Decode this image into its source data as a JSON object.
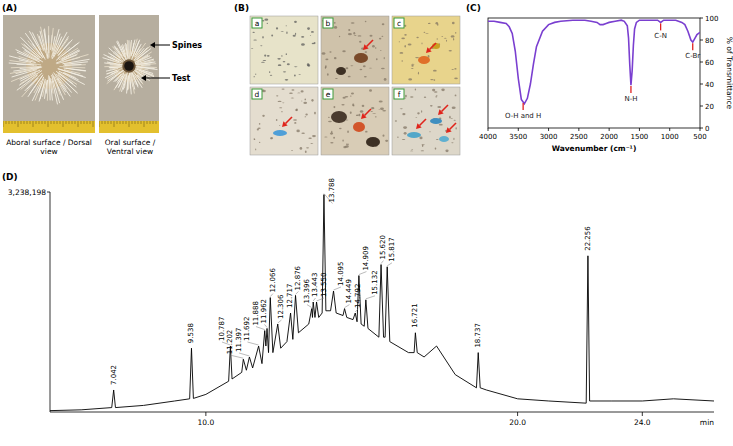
{
  "panel_labels": [
    "(A)",
    "(B)",
    "(C)",
    "(D)"
  ],
  "photos": {
    "captions": [
      "Aboral surface / Dorsal view",
      "Oral surface / Ventral view"
    ],
    "callouts": [
      "Spines",
      "Test"
    ]
  },
  "micrographs": [
    "a",
    "b",
    "c",
    "d",
    "e",
    "f"
  ],
  "chart_data": [
    {
      "type": "line",
      "x_label": "Wavenumber (cm⁻¹)",
      "y_label": "% of Transmittance",
      "color": "#7a3fd0",
      "x": [
        4000,
        3900,
        3800,
        3700,
        3650,
        3600,
        3550,
        3500,
        3450,
        3400,
        3350,
        3300,
        3250,
        3200,
        3100,
        3000,
        2900,
        2800,
        2600,
        2400,
        2300,
        2200,
        2150,
        2100,
        2050,
        2000,
        1900,
        1800,
        1750,
        1700,
        1680,
        1660,
        1640,
        1620,
        1600,
        1580,
        1550,
        1500,
        1400,
        1300,
        1200,
        1150,
        1100,
        1000,
        900,
        800,
        750,
        700,
        650,
        620,
        580,
        550,
        500
      ],
      "values": [
        97,
        97,
        96,
        95,
        92,
        86,
        70,
        45,
        26,
        22,
        27,
        40,
        58,
        74,
        88,
        94,
        96,
        97,
        98,
        98,
        97,
        96,
        94,
        94,
        95,
        96,
        97,
        98,
        97,
        93,
        82,
        58,
        39,
        52,
        75,
        90,
        96,
        98,
        98,
        98,
        98,
        96,
        98,
        98,
        98,
        96,
        94,
        88,
        80,
        78,
        82,
        85,
        87
      ],
      "xlim": [
        4000,
        500
      ],
      "xticks": [
        4000,
        3500,
        3000,
        2500,
        2000,
        1500,
        1000,
        500
      ],
      "ylim": [
        0,
        100
      ],
      "yticks": [
        0,
        20,
        40,
        60,
        80,
        100
      ],
      "annotations": [
        {
          "x": 3420,
          "label": "O-H and H"
        },
        {
          "x": 1640,
          "label": "N-H"
        },
        {
          "x": 1150,
          "label": "C-N"
        },
        {
          "x": 620,
          "label": "C-Br"
        }
      ]
    },
    {
      "type": "line",
      "x_label": "min",
      "color": "#000000",
      "x": [
        5.0,
        6.0,
        6.98,
        7.042,
        7.1,
        8.0,
        9.0,
        9.48,
        9.538,
        9.6,
        10.0,
        10.73,
        10.787,
        10.84,
        11.15,
        11.202,
        11.3,
        11.397,
        11.5,
        11.692,
        11.8,
        11.888,
        11.925,
        11.962,
        12.01,
        12.066,
        12.15,
        12.306,
        12.4,
        12.6,
        12.717,
        12.79,
        12.876,
        12.97,
        13.3,
        13.396,
        13.42,
        13.443,
        13.5,
        13.55,
        13.62,
        13.73,
        13.788,
        13.85,
        14.0,
        14.095,
        14.18,
        14.4,
        14.449,
        14.52,
        14.72,
        14.792,
        14.85,
        14.909,
        14.98,
        15.08,
        15.132,
        15.2,
        15.55,
        15.62,
        15.7,
        15.75,
        15.817,
        15.9,
        16.5,
        16.68,
        16.721,
        16.78,
        17.0,
        17.4,
        18.0,
        18.68,
        18.737,
        18.8,
        19.0,
        20.0,
        21.0,
        22.2,
        22.256,
        22.31,
        23.0,
        24.0,
        25.0,
        26.3
      ],
      "values": [
        20000,
        32000,
        65000,
        324000,
        65000,
        97000,
        162000,
        194000,
        939000,
        200000,
        259000,
        453000,
        971000,
        486000,
        583000,
        777000,
        615000,
        810000,
        648000,
        971000,
        712000,
        1198000,
        971000,
        1230000,
        874000,
        1684000,
        874000,
        1295000,
        939000,
        1036000,
        1457000,
        1069000,
        1716000,
        1166000,
        1295000,
        1522000,
        1392000,
        1619000,
        1392000,
        1619000,
        1392000,
        1457000,
        3200000,
        1490000,
        1490000,
        1781000,
        1457000,
        1420000,
        1522000,
        1392000,
        1360000,
        1457000,
        1328000,
        2008000,
        1295000,
        1262000,
        1651000,
        1230000,
        1101000,
        2170000,
        1101000,
        1101000,
        2137000,
        1036000,
        874000,
        874000,
        1166000,
        874000,
        810000,
        971000,
        550000,
        356000,
        874000,
        356000,
        324000,
        194000,
        162000,
        130000,
        2299000,
        162000,
        162000,
        162000,
        194000,
        162000
      ],
      "xlim": [
        5.0,
        26.3
      ],
      "xticks": [
        {
          "value": 10,
          "label": "10.0"
        },
        {
          "value": 20,
          "label": "20.0"
        },
        {
          "value": 24,
          "label": "24.0"
        }
      ],
      "ylim": [
        0,
        3238198
      ],
      "yticks": [
        {
          "value": 3238198,
          "label": "3,238,198"
        }
      ],
      "annotations": [
        {
          "x": 7.042,
          "label": "7.042"
        },
        {
          "x": 9.538,
          "label": "9.538"
        },
        {
          "x": 10.787,
          "label": "10.787"
        },
        {
          "x": 11.202,
          "label": "11.202"
        },
        {
          "x": 11.397,
          "label": "11.397"
        },
        {
          "x": 11.692,
          "label": "11.692"
        },
        {
          "x": 11.888,
          "label": "11.888"
        },
        {
          "x": 11.962,
          "label": "11.962"
        },
        {
          "x": 12.066,
          "label": "12.066"
        },
        {
          "x": 12.306,
          "label": "12.306"
        },
        {
          "x": 12.717,
          "label": "12.717"
        },
        {
          "x": 12.876,
          "label": "12.876"
        },
        {
          "x": 13.396,
          "label": "13.396"
        },
        {
          "x": 13.443,
          "label": "13.443"
        },
        {
          "x": 13.55,
          "label": "13.550"
        },
        {
          "x": 13.788,
          "label": "13.788"
        },
        {
          "x": 14.095,
          "label": "14.095"
        },
        {
          "x": 14.449,
          "label": "14.449"
        },
        {
          "x": 14.792,
          "label": "14.792"
        },
        {
          "x": 14.909,
          "label": "14.909"
        },
        {
          "x": 15.132,
          "label": "15.132"
        },
        {
          "x": 15.62,
          "label": "15.620"
        },
        {
          "x": 15.817,
          "label": "15.817"
        },
        {
          "x": 16.721,
          "label": "16.721"
        },
        {
          "x": 18.737,
          "label": "18.737"
        },
        {
          "x": 22.256,
          "label": "22.256"
        }
      ]
    }
  ]
}
